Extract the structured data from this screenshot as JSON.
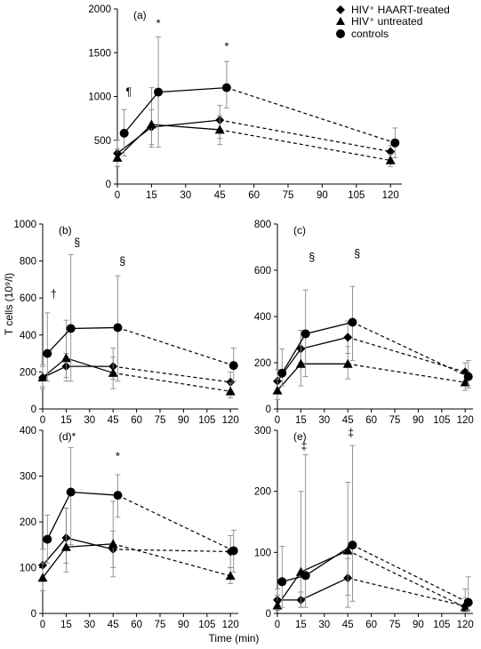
{
  "figure": {
    "ylabel": "T cells (10⁹/l)",
    "xlabel": "Time (min)",
    "legend": [
      {
        "marker": "diamond",
        "label": "HIV⁺ HAART-treated"
      },
      {
        "marker": "triangle",
        "label": "HIV⁺ untreated"
      },
      {
        "marker": "circle",
        "label": "controls"
      }
    ]
  },
  "chart_data": [
    {
      "id": "a",
      "type": "line",
      "panel_label": "(a)",
      "x_ticks": [
        0,
        15,
        30,
        45,
        60,
        75,
        90,
        105,
        120
      ],
      "ylim": [
        0,
        2000
      ],
      "y_ticks": [
        0,
        500,
        1000,
        1500,
        2000
      ],
      "series": [
        {
          "name": "HIV⁺ HAART-treated",
          "marker": "diamond",
          "points": [
            {
              "x": 0,
              "y": 350,
              "lo": 200,
              "hi": 500
            },
            {
              "x": 15,
              "y": 650,
              "lo": 450,
              "hi": 850
            },
            {
              "x": 45,
              "y": 730,
              "lo": 520,
              "hi": 900
            },
            {
              "x": 120,
              "y": 370,
              "lo": 300,
              "hi": 440
            }
          ]
        },
        {
          "name": "HIV⁺ untreated",
          "marker": "triangle",
          "points": [
            {
              "x": 0,
              "y": 300,
              "lo": 200,
              "hi": 400
            },
            {
              "x": 15,
              "y": 680,
              "lo": 420,
              "hi": 1100
            },
            {
              "x": 45,
              "y": 620,
              "lo": 450,
              "hi": 780
            },
            {
              "x": 120,
              "y": 270,
              "lo": 200,
              "hi": 340
            }
          ]
        },
        {
          "name": "controls",
          "marker": "circle",
          "points": [
            {
              "x": 3,
              "y": 580,
              "lo": 320,
              "hi": 850
            },
            {
              "x": 18,
              "y": 1050,
              "lo": 420,
              "hi": 1680
            },
            {
              "x": 48,
              "y": 1100,
              "lo": 870,
              "hi": 1400
            },
            {
              "x": 122,
              "y": 470,
              "lo": 300,
              "hi": 640
            }
          ]
        }
      ],
      "annotations": [
        {
          "text": "¶",
          "x": 5,
          "y": 1010,
          "grey": false
        },
        {
          "text": "*",
          "x": 18,
          "y": 1790,
          "grey": true
        },
        {
          "text": "*",
          "x": 48,
          "y": 1530,
          "grey": true
        }
      ]
    },
    {
      "id": "b",
      "type": "line",
      "panel_label": "(b)",
      "x_ticks": [
        0,
        15,
        30,
        45,
        60,
        75,
        90,
        105,
        120
      ],
      "ylim": [
        0,
        1000
      ],
      "y_ticks": [
        0,
        200,
        400,
        600,
        800,
        1000
      ],
      "series": [
        {
          "name": "HIV⁺ HAART-treated",
          "marker": "diamond",
          "points": [
            {
              "x": 0,
              "y": 170,
              "lo": 120,
              "hi": 230
            },
            {
              "x": 15,
              "y": 230,
              "lo": 170,
              "hi": 300
            },
            {
              "x": 45,
              "y": 230,
              "lo": 160,
              "hi": 330
            },
            {
              "x": 120,
              "y": 145,
              "lo": 100,
              "hi": 200
            }
          ]
        },
        {
          "name": "HIV⁺ untreated",
          "marker": "triangle",
          "points": [
            {
              "x": 0,
              "y": 170,
              "lo": 110,
              "hi": 240
            },
            {
              "x": 15,
              "y": 275,
              "lo": 150,
              "hi": 480
            },
            {
              "x": 45,
              "y": 195,
              "lo": 110,
              "hi": 280
            },
            {
              "x": 120,
              "y": 95,
              "lo": 60,
              "hi": 140
            }
          ]
        },
        {
          "name": "controls",
          "marker": "circle",
          "points": [
            {
              "x": 3,
              "y": 300,
              "lo": 150,
              "hi": 520
            },
            {
              "x": 18,
              "y": 435,
              "lo": 150,
              "hi": 835
            },
            {
              "x": 48,
              "y": 440,
              "lo": 150,
              "hi": 720
            },
            {
              "x": 122,
              "y": 235,
              "lo": 150,
              "hi": 330
            }
          ]
        }
      ],
      "annotations": [
        {
          "text": "†",
          "x": 7,
          "y": 600,
          "grey": false
        },
        {
          "text": "§",
          "x": 22,
          "y": 880,
          "grey": false
        },
        {
          "text": "§",
          "x": 51,
          "y": 780,
          "grey": false
        }
      ]
    },
    {
      "id": "c",
      "type": "line",
      "panel_label": "(c)",
      "x_ticks": [
        0,
        15,
        30,
        45,
        60,
        75,
        90,
        105,
        120
      ],
      "ylim": [
        0,
        800
      ],
      "y_ticks": [
        0,
        200,
        400,
        600,
        800
      ],
      "series": [
        {
          "name": "HIV⁺ HAART-treated",
          "marker": "diamond",
          "points": [
            {
              "x": 0,
              "y": 120,
              "lo": 80,
              "hi": 170
            },
            {
              "x": 15,
              "y": 260,
              "lo": 200,
              "hi": 340
            },
            {
              "x": 45,
              "y": 310,
              "lo": 240,
              "hi": 380
            },
            {
              "x": 120,
              "y": 160,
              "lo": 120,
              "hi": 200
            }
          ]
        },
        {
          "name": "HIV⁺ untreated",
          "marker": "triangle",
          "points": [
            {
              "x": 0,
              "y": 80,
              "lo": 40,
              "hi": 130
            },
            {
              "x": 15,
              "y": 195,
              "lo": 100,
              "hi": 340
            },
            {
              "x": 45,
              "y": 195,
              "lo": 130,
              "hi": 270
            },
            {
              "x": 120,
              "y": 115,
              "lo": 80,
              "hi": 150
            }
          ]
        },
        {
          "name": "controls",
          "marker": "circle",
          "points": [
            {
              "x": 3,
              "y": 155,
              "lo": 100,
              "hi": 260
            },
            {
              "x": 18,
              "y": 325,
              "lo": 140,
              "hi": 515
            },
            {
              "x": 48,
              "y": 375,
              "lo": 210,
              "hi": 530
            },
            {
              "x": 122,
              "y": 140,
              "lo": 90,
              "hi": 210
            }
          ]
        }
      ],
      "annotations": [
        {
          "text": "§",
          "x": 22,
          "y": 640,
          "grey": false
        },
        {
          "text": "§",
          "x": 51,
          "y": 655,
          "grey": false
        }
      ]
    },
    {
      "id": "d",
      "type": "line",
      "panel_label": "(d)*",
      "x_ticks": [
        0,
        15,
        30,
        45,
        60,
        75,
        90,
        105,
        120
      ],
      "ylim": [
        0,
        400
      ],
      "y_ticks": [
        0,
        100,
        200,
        300,
        400
      ],
      "series": [
        {
          "name": "HIV⁺ HAART-treated",
          "marker": "diamond",
          "points": [
            {
              "x": 0,
              "y": 105,
              "lo": 70,
              "hi": 140
            },
            {
              "x": 15,
              "y": 165,
              "lo": 110,
              "hi": 230
            },
            {
              "x": 45,
              "y": 140,
              "lo": 100,
              "hi": 180
            },
            {
              "x": 120,
              "y": 135,
              "lo": 100,
              "hi": 170
            }
          ]
        },
        {
          "name": "HIV⁺ untreated",
          "marker": "triangle",
          "points": [
            {
              "x": 0,
              "y": 78,
              "lo": 50,
              "hi": 110
            },
            {
              "x": 15,
              "y": 145,
              "lo": 90,
              "hi": 230
            },
            {
              "x": 45,
              "y": 152,
              "lo": 80,
              "hi": 245
            },
            {
              "x": 120,
              "y": 82,
              "lo": 65,
              "hi": 100
            }
          ]
        },
        {
          "name": "controls",
          "marker": "circle",
          "points": [
            {
              "x": 3,
              "y": 162,
              "lo": 110,
              "hi": 215
            },
            {
              "x": 18,
              "y": 265,
              "lo": 150,
              "hi": 362
            },
            {
              "x": 48,
              "y": 258,
              "lo": 210,
              "hi": 303
            },
            {
              "x": 122,
              "y": 137,
              "lo": 90,
              "hi": 182
            }
          ]
        }
      ],
      "annotations": [
        {
          "text": "*",
          "x": 48,
          "y": 335,
          "grey": true
        }
      ]
    },
    {
      "id": "e",
      "type": "line",
      "panel_label": "(e)",
      "x_ticks": [
        0,
        15,
        30,
        45,
        60,
        75,
        90,
        105,
        120
      ],
      "ylim": [
        0,
        300
      ],
      "y_ticks": [
        0,
        100,
        200,
        300
      ],
      "series": [
        {
          "name": "HIV⁺ HAART-treated",
          "marker": "diamond",
          "points": [
            {
              "x": 0,
              "y": 22,
              "lo": 10,
              "hi": 40
            },
            {
              "x": 15,
              "y": 22,
              "lo": 10,
              "hi": 35
            },
            {
              "x": 45,
              "y": 58,
              "lo": 30,
              "hi": 90
            },
            {
              "x": 120,
              "y": 12,
              "lo": 5,
              "hi": 25
            }
          ]
        },
        {
          "name": "HIV⁺ untreated",
          "marker": "triangle",
          "points": [
            {
              "x": 0,
              "y": 13,
              "lo": 5,
              "hi": 30
            },
            {
              "x": 15,
              "y": 68,
              "lo": 10,
              "hi": 200
            },
            {
              "x": 45,
              "y": 103,
              "lo": 10,
              "hi": 215
            },
            {
              "x": 120,
              "y": 10,
              "lo": 3,
              "hi": 40
            }
          ]
        },
        {
          "name": "controls",
          "marker": "circle",
          "points": [
            {
              "x": 3,
              "y": 52,
              "lo": 10,
              "hi": 110
            },
            {
              "x": 18,
              "y": 62,
              "lo": 10,
              "hi": 260
            },
            {
              "x": 48,
              "y": 112,
              "lo": 20,
              "hi": 275
            },
            {
              "x": 122,
              "y": 18,
              "lo": 5,
              "hi": 60
            }
          ]
        }
      ],
      "annotations": [
        {
          "text": "‡",
          "x": 17,
          "y": 268,
          "grey": false
        },
        {
          "text": "‡",
          "x": 47,
          "y": 290,
          "grey": false
        }
      ]
    }
  ]
}
